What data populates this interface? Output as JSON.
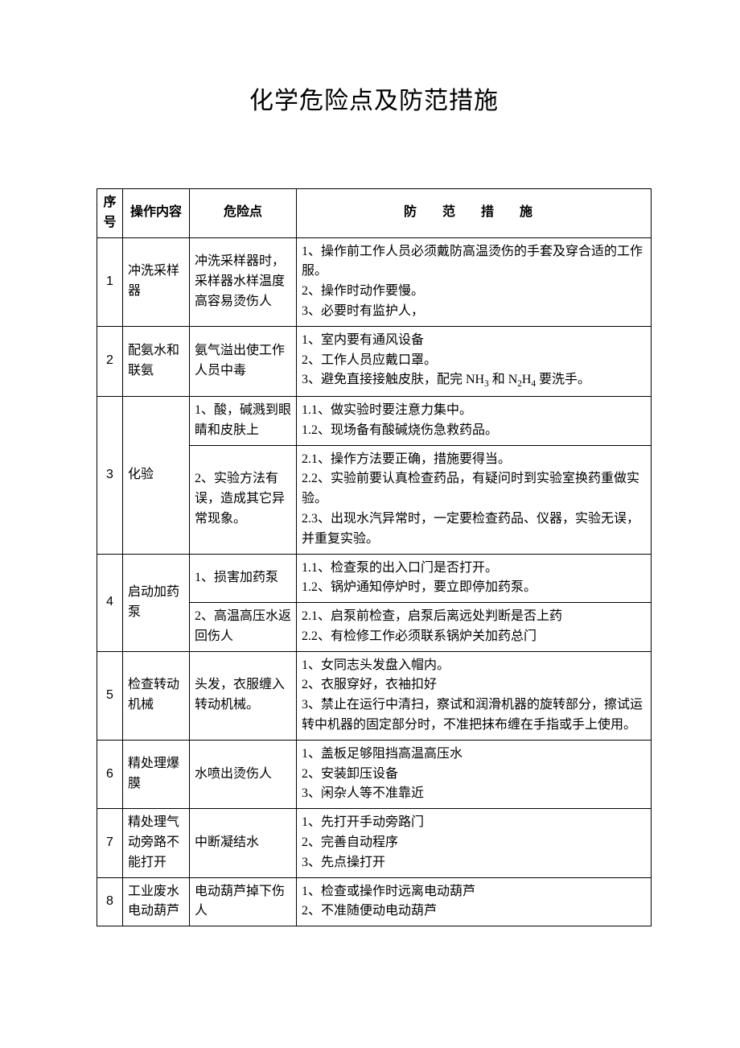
{
  "title": "化学危险点及防范措施",
  "columns": {
    "seq": "序号",
    "operation": "操作内容",
    "risk": "危险点",
    "measure": "防 范 措 施"
  },
  "rows": {
    "r1": {
      "seq": "1",
      "operation": "冲洗采样器",
      "risk": "冲洗采样器时，采样器水样温度高容易烫伤人",
      "measure": "1、操作前工作人员必须戴防高温烫伤的手套及穿合适的工作服。\n2、操作时动作要慢。\n3、必要时有监护人，"
    },
    "r2": {
      "seq": "2",
      "operation": "配氨水和联氨",
      "risk": "氨气溢出使工作人员中毒",
      "measure_prefix": "1、室内要有通风设备\n2、工作人员应戴口罩。\n3、避免直接接触皮肤，配完 NH",
      "measure_mid": " 和 N",
      "measure_suffix": " 要洗手。",
      "sub1": "3",
      "sub2": "2",
      "sub3": "4",
      "h_mid": "H"
    },
    "r3a": {
      "seq": "3",
      "operation": "化验",
      "risk": "1、酸，碱溅到眼睛和皮肤上",
      "measure": "1.1、做实验时要注意力集中。\n1.2、现场备有酸碱烧伤急救药品。"
    },
    "r3b": {
      "risk": "2、实验方法有误，造成其它异常现象。",
      "measure": "2.1、操作方法要正确，措施要得当。\n2.2、实验前要认真检查药品，有疑问时到实验室换药重做实验。\n2.3、出现水汽异常时，一定要检查药品、仪器，实验无误，并重复实验。"
    },
    "r4a": {
      "seq": "4",
      "operation": "启动加药泵",
      "risk": "1、损害加药泵",
      "measure": "1.1、检查泵的出入口门是否打开。\n1.2、锅炉通知停炉时，要立即停加药泵。"
    },
    "r4b": {
      "risk": "2、高温高压水返回伤人",
      "measure": "2.1、启泵前检查，启泵后离远处判断是否上药\n2.2、有检修工作必须联系锅炉关加药总门"
    },
    "r5": {
      "seq": "5",
      "operation": "检查转动机械",
      "risk": "头发，衣服缠入转动机械。",
      "measure": "1、女同志头发盘入帽内。\n2、衣服穿好，衣袖扣好\n3、禁止在运行中清扫，察试和润滑机器的旋转部分，擦试运转中机器的固定部分时，不准把抹布缠在手指或手上使用。"
    },
    "r6": {
      "seq": "6",
      "operation": "精处理爆膜",
      "risk": "水喷出烫伤人",
      "measure": "1、盖板足够阻挡高温高压水\n2、安装卸压设备\n3、闲杂人等不准靠近"
    },
    "r7": {
      "seq": "7",
      "operation": "精处理气动旁路不能打开",
      "risk": "中断凝结水",
      "measure": "1、先打开手动旁路门\n2、完善自动程序\n3、先点操打开"
    },
    "r8": {
      "seq": "8",
      "operation": "工业废水电动葫芦",
      "risk": "电动葫芦掉下伤人",
      "measure": "1、检查或操作时远离电动葫芦\n2、不准随便动电动葫芦"
    }
  }
}
